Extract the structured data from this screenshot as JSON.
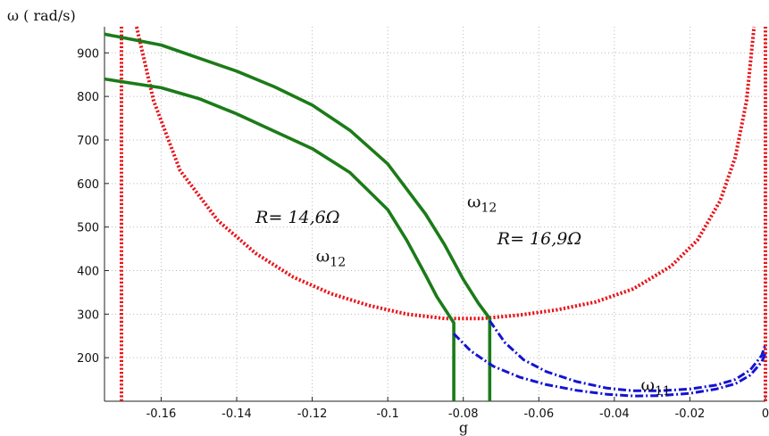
{
  "chart_data": {
    "type": "line",
    "title": "",
    "xlabel": "g",
    "ylabel": "ω ( rad/s)",
    "xlim": [
      -0.175,
      0
    ],
    "ylim": [
      100,
      960
    ],
    "grid": true,
    "x_ticks": [
      -0.16,
      -0.14,
      -0.12,
      -0.1,
      -0.08,
      -0.06,
      -0.04,
      -0.02,
      0
    ],
    "x_tick_labels": [
      "-0.16",
      "-0.14",
      "-0.12",
      "-0.1",
      "-0.08",
      "-0.06",
      "-0.04",
      "-0.02",
      "0"
    ],
    "y_ticks": [
      200,
      300,
      400,
      500,
      600,
      700,
      800,
      900
    ],
    "y_tick_labels": [
      "200",
      "300",
      "400",
      "500",
      "600",
      "700",
      "800",
      "900"
    ],
    "series": [
      {
        "style": "dotted",
        "color": "#e8141a",
        "x": [
          -0.1705,
          -0.1705
        ],
        "y": [
          100,
          960
        ]
      },
      {
        "style": "dotted",
        "color": "#e8141a",
        "x": [
          -0.1665,
          -0.162,
          -0.155,
          -0.145,
          -0.135,
          -0.125,
          -0.115,
          -0.105,
          -0.095,
          -0.085,
          -0.075,
          -0.065,
          -0.055,
          -0.045,
          -0.035,
          -0.025,
          -0.018,
          -0.012,
          -0.008,
          -0.005,
          -0.003
        ],
        "y": [
          960,
          790,
          630,
          515,
          440,
          385,
          347,
          320,
          300,
          290,
          290,
          298,
          310,
          328,
          358,
          410,
          470,
          560,
          660,
          790,
          960
        ]
      },
      {
        "style": "dotted",
        "color": "#e8141a",
        "x": [
          0,
          0
        ],
        "y": [
          100,
          960
        ]
      },
      {
        "style": "solid",
        "color": "#1b7b18",
        "x": [
          -0.175,
          -0.16,
          -0.15,
          -0.14,
          -0.13,
          -0.12,
          -0.11,
          -0.1,
          -0.095,
          -0.09,
          -0.087,
          -0.084,
          -0.0825,
          -0.0825
        ],
        "y": [
          840,
          820,
          795,
          760,
          720,
          680,
          625,
          540,
          470,
          390,
          340,
          300,
          280,
          100
        ]
      },
      {
        "style": "solid",
        "color": "#1b7b18",
        "x": [
          -0.175,
          -0.16,
          -0.15,
          -0.14,
          -0.13,
          -0.12,
          -0.11,
          -0.1,
          -0.09,
          -0.085,
          -0.08,
          -0.076,
          -0.073,
          -0.073
        ],
        "y": [
          943,
          918,
          888,
          858,
          822,
          780,
          722,
          645,
          530,
          460,
          380,
          325,
          290,
          100
        ]
      },
      {
        "style": "dashdot",
        "color": "#1414d2",
        "x": [
          -0.0825,
          -0.078,
          -0.072,
          -0.065,
          -0.058,
          -0.05,
          -0.042,
          -0.035,
          -0.028,
          -0.02,
          -0.013,
          -0.008,
          -0.004,
          -0.001,
          0
        ],
        "y": [
          255,
          215,
          180,
          155,
          138,
          125,
          116,
          112,
          113,
          118,
          128,
          140,
          160,
          190,
          210
        ]
      },
      {
        "style": "dashdot",
        "color": "#1414d2",
        "x": [
          -0.073,
          -0.069,
          -0.064,
          -0.058,
          -0.05,
          -0.042,
          -0.035,
          -0.028,
          -0.02,
          -0.013,
          -0.008,
          -0.004,
          -0.001,
          0
        ],
        "y": [
          285,
          235,
          195,
          168,
          145,
          130,
          124,
          124,
          128,
          137,
          150,
          172,
          205,
          230
        ]
      }
    ],
    "annotations": [
      {
        "text": "R= 14,6Ω",
        "x": -0.135,
        "y": 510,
        "italic": true
      },
      {
        "text": "ω",
        "sub": "12",
        "x": -0.119,
        "y": 420,
        "italic": false
      },
      {
        "text": "ω",
        "sub": "12",
        "x": -0.079,
        "y": 545,
        "italic": false
      },
      {
        "text": "R= 16,9Ω",
        "x": -0.071,
        "y": 460,
        "italic": true
      },
      {
        "text": "ω",
        "sub": "11",
        "x": -0.033,
        "y": 125,
        "italic": false
      }
    ]
  }
}
